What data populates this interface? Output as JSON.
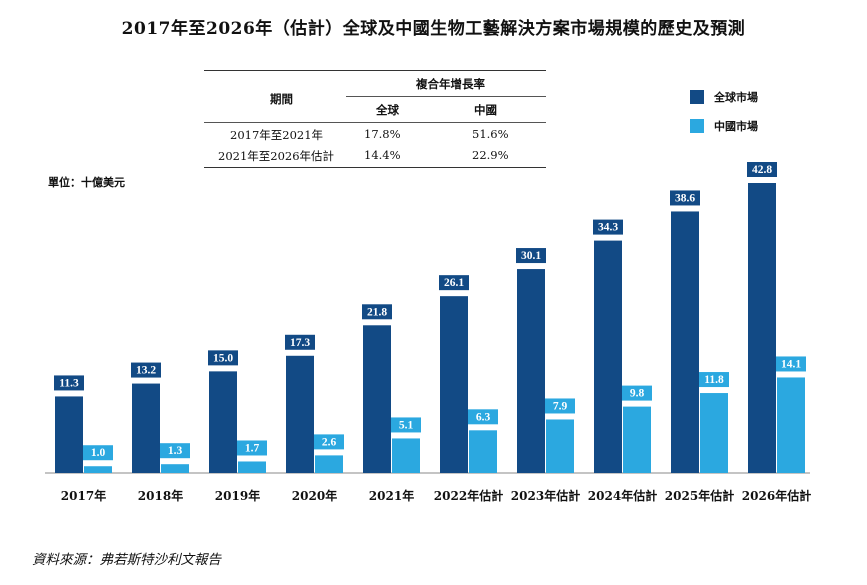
{
  "title": "2017年至2026年（估計）全球及中國生物工藝解決方案市場規模的歷史及預測",
  "unit_label": "單位：十億美元",
  "source": "資料來源：弗若斯特沙利文報告",
  "table": {
    "period_header": "期間",
    "cagr_header": "複合年增長率",
    "col_global": "全球",
    "col_china": "中國",
    "rows": [
      {
        "period": "2017年至2021年",
        "global": "17.8%",
        "china": "51.6%"
      },
      {
        "period": "2021年至2026年估計",
        "global": "14.4%",
        "china": "22.9%"
      }
    ]
  },
  "legend": {
    "global": "全球市場",
    "china": "中國市場"
  },
  "colors": {
    "global": "#124a85",
    "china": "#2ba8e0"
  },
  "chart_data": {
    "type": "bar",
    "categories": [
      "2017年",
      "2018年",
      "2019年",
      "2020年",
      "2021年",
      "2022年估計",
      "2023年估計",
      "2024年估計",
      "2025年估計",
      "2026年估計"
    ],
    "series": [
      {
        "name": "全球市場",
        "values": [
          11.3,
          13.2,
          15.0,
          17.3,
          21.8,
          26.1,
          30.1,
          34.3,
          38.6,
          42.8
        ]
      },
      {
        "name": "中國市場",
        "values": [
          1.0,
          1.3,
          1.7,
          2.6,
          5.1,
          6.3,
          7.9,
          9.8,
          11.8,
          14.1
        ]
      }
    ],
    "ylim": [
      0,
      42.8
    ],
    "data_labels": true,
    "legend_position": "top-right",
    "grid": false
  }
}
